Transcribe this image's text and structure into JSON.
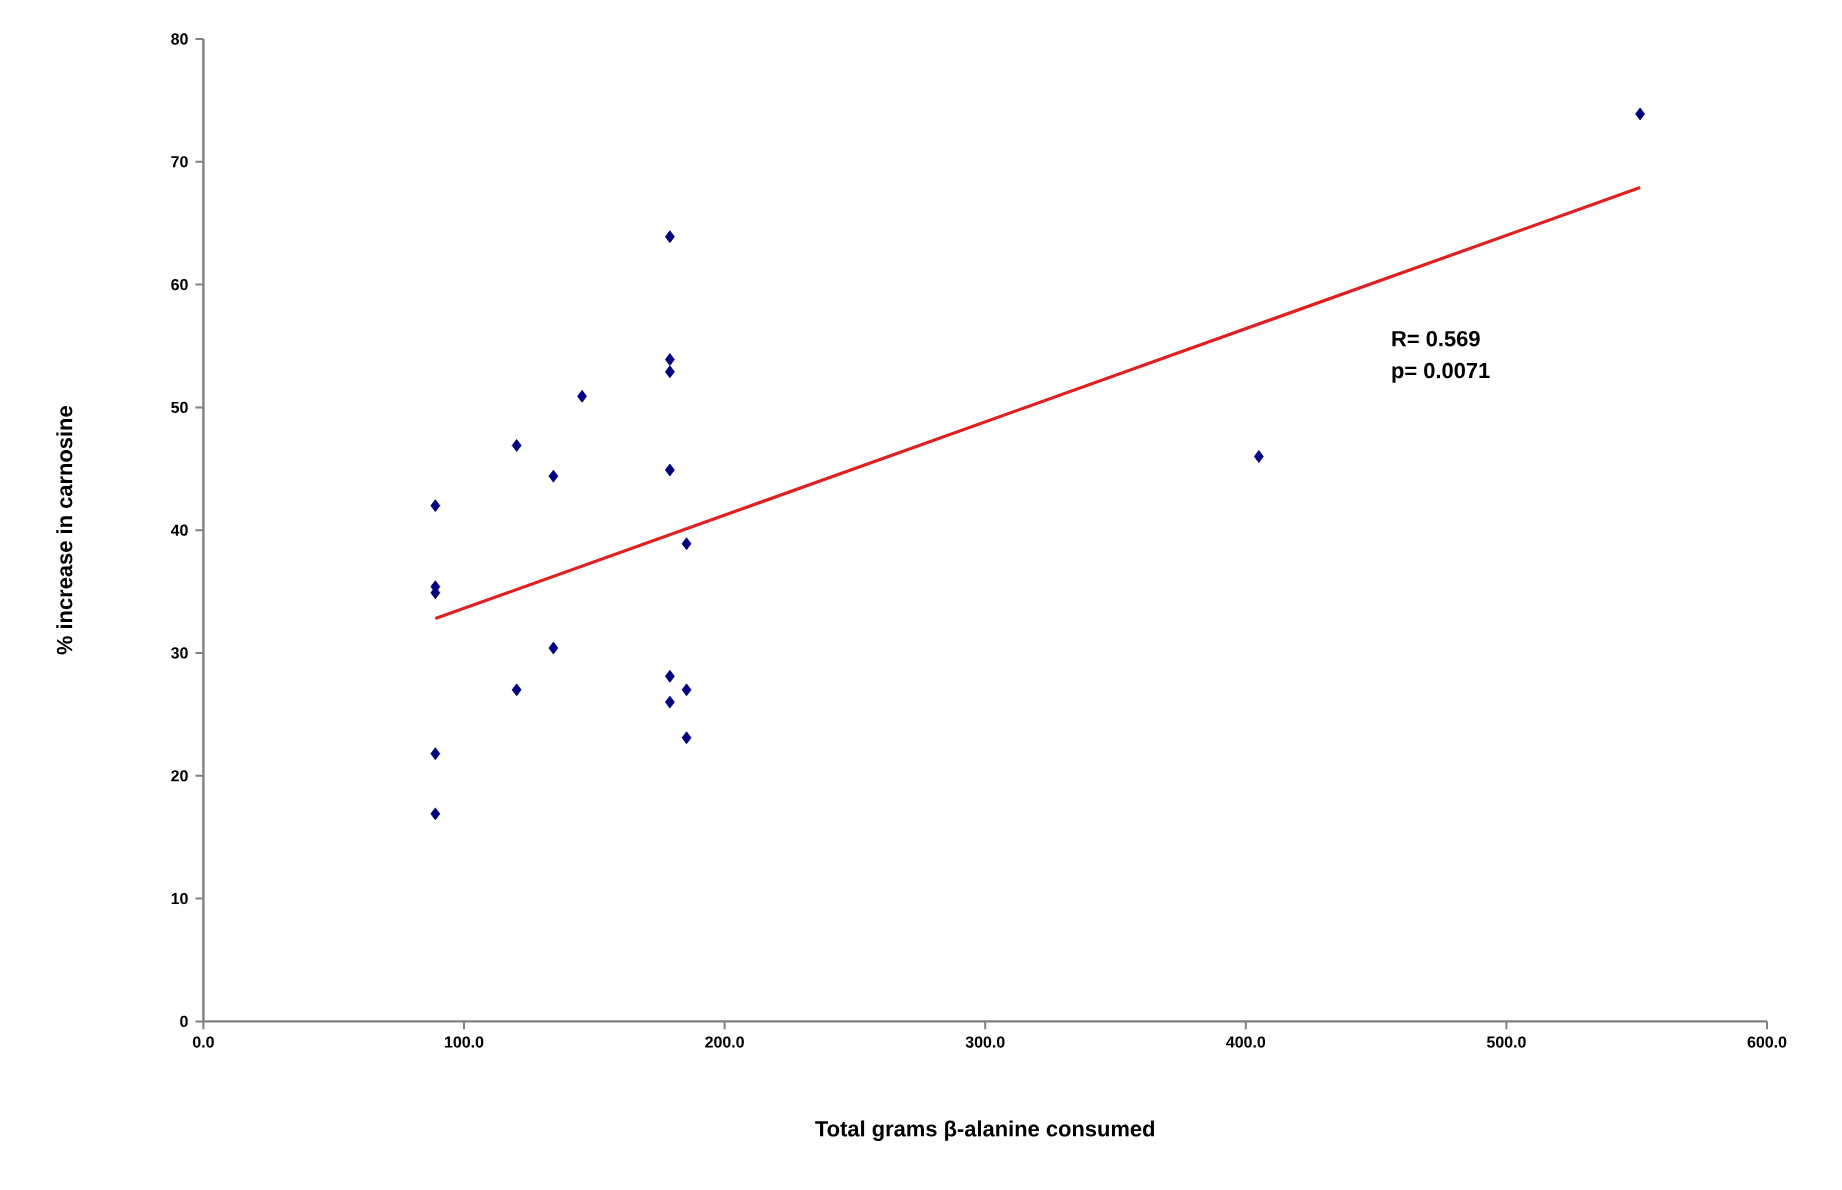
{
  "chart_data": {
    "type": "scatter",
    "xlabel": "Total grams β-alanine consumed",
    "ylabel": "% increase in carnosine",
    "xlim": [
      0,
      600
    ],
    "xticks": [
      {
        "value": 0,
        "label": "0.0"
      },
      {
        "value": 100,
        "label": "100.0"
      },
      {
        "value": 200,
        "label": "200.0"
      },
      {
        "value": 300,
        "label": "300.0"
      },
      {
        "value": 400,
        "label": "400.0"
      },
      {
        "value": 500,
        "label": "500.0"
      },
      {
        "value": 600,
        "label": "600.0"
      }
    ],
    "ylim": [
      0,
      80
    ],
    "yticks": [
      0,
      10,
      20,
      30,
      40,
      50,
      60,
      70,
      80
    ],
    "annotations": [
      "R= 0.569",
      "p= 0.0071"
    ],
    "series": [
      {
        "color": "#000080",
        "marker": "diamond",
        "x": [
          89,
          89,
          89,
          89,
          89,
          120.2,
          120.2,
          134.3,
          134.3,
          145.3,
          179,
          179,
          179,
          179,
          179,
          179,
          185.4,
          185.4,
          185.4,
          405,
          551.3
        ],
        "values": [
          42.0,
          35.4,
          34.9,
          21.8,
          16.9,
          46.9,
          27.0,
          44.4,
          30.4,
          50.9,
          63.9,
          53.9,
          52.9,
          44.9,
          28.1,
          26.0,
          38.9,
          27.0,
          23.1,
          46.0,
          73.9
        ]
      },
      {
        "type": "line",
        "color": "#e02020",
        "marker": "none",
        "line_style": "solid",
        "x": [
          89,
          551.3
        ],
        "values": [
          32.8,
          67.9
        ]
      }
    ]
  }
}
